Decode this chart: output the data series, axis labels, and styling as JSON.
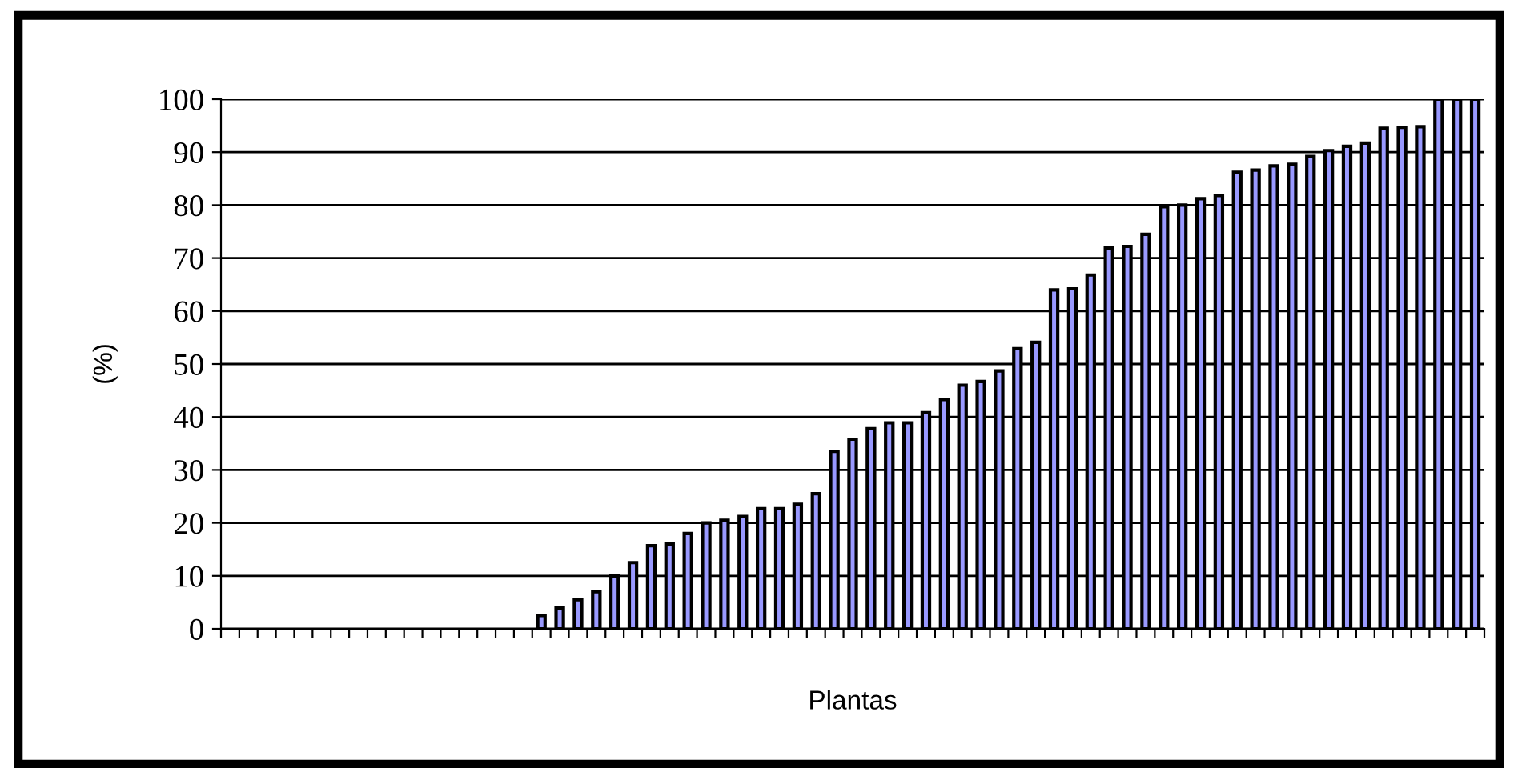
{
  "chart_data": {
    "type": "bar",
    "xlabel": "Plantas",
    "ylabel": "(%)",
    "categories": [
      null,
      null,
      null,
      null,
      null,
      null,
      null,
      null,
      null,
      null,
      null,
      null,
      null,
      null,
      null,
      null,
      null,
      null,
      null,
      null,
      null,
      null,
      null,
      null,
      null,
      null,
      null,
      null,
      null,
      null,
      null,
      null,
      null,
      null,
      null,
      null,
      null,
      null,
      null,
      null,
      null,
      null,
      null,
      null,
      null,
      null,
      null,
      null,
      null,
      null,
      null,
      null,
      null,
      null,
      null,
      null,
      null,
      null,
      null,
      null,
      null,
      null,
      null,
      null,
      null,
      null,
      null,
      null,
      null
    ],
    "values": [
      0,
      0,
      0,
      0,
      0,
      0,
      0,
      0,
      0,
      0,
      0,
      0,
      0,
      0,
      0,
      0,
      0,
      2.5,
      3.9,
      5.5,
      7,
      10,
      12.5,
      15.7,
      16,
      18,
      20,
      20.5,
      21.2,
      22.7,
      22.7,
      23.5,
      25.5,
      33.5,
      35.8,
      37.8,
      38.9,
      38.9,
      40.8,
      43.3,
      46,
      46.7,
      48.7,
      52.9,
      54.1,
      64,
      64.2,
      66.8,
      71.9,
      72.2,
      74.5,
      79.7,
      80,
      81.2,
      81.8,
      86.2,
      86.6,
      87.4,
      87.7,
      89.2,
      90.3,
      91.1,
      91.7,
      94.5,
      94.7,
      94.8,
      100,
      100,
      100
    ],
    "color": "#9999ff",
    "ylim": [
      0,
      100
    ],
    "yticks": [
      0,
      10,
      20,
      30,
      40,
      50,
      60,
      70,
      80,
      90,
      100
    ],
    "grid": "y",
    "legend": false
  }
}
